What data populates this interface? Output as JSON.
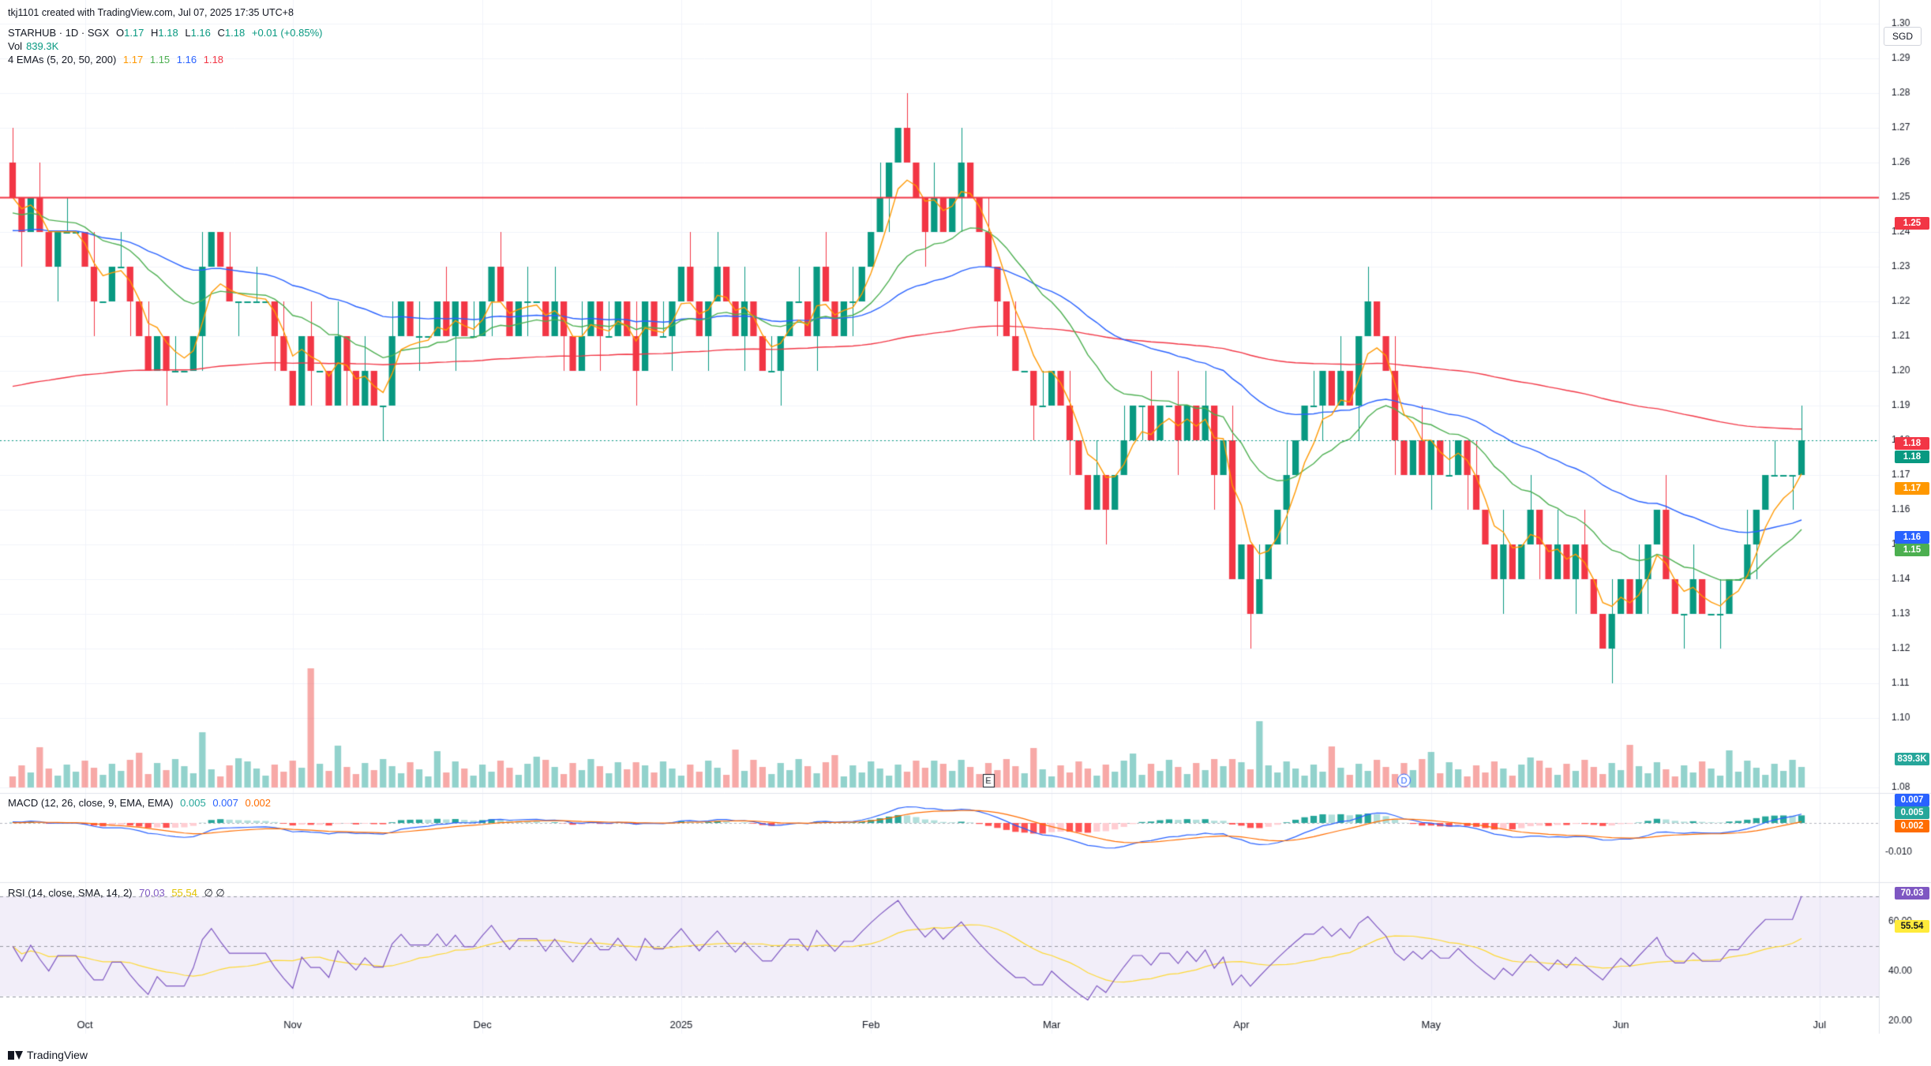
{
  "header": {
    "credit": "tkj1101 created with TradingView.com, Jul 07, 2025 17:35 UTC+8",
    "symbol": "STARHUB · 1D · SGX",
    "o_label": "O",
    "o": "1.17",
    "h_label": "H",
    "h": "1.18",
    "l_label": "L",
    "l": "1.16",
    "c_label": "C",
    "c": "1.18",
    "change": "+0.01 (+0.85%)",
    "vol_label": "Vol",
    "vol": "839.3K",
    "ema_label": "4 EMAs (5, 20, 50, 200)",
    "ema5": "1.17",
    "ema20": "1.15",
    "ema50": "1.16",
    "ema200": "1.18",
    "macd_label": "MACD (12, 26, close, 9, EMA, EMA)",
    "macd_hist": "0.005",
    "macd_line": "0.007",
    "macd_signal": "0.002",
    "rsi_label": "RSI (14, close, SMA, 14, 2)",
    "rsi_val": "70.03",
    "rsi_ma": "55.54",
    "rsi_extra": "∅ ∅"
  },
  "currency": "SGD",
  "price_axis_ticks": [
    "1.30",
    "1.29",
    "1.28",
    "1.27",
    "1.26",
    "1.25",
    "1.24",
    "1.23",
    "1.22",
    "1.21",
    "1.20",
    "1.19",
    "1.18",
    "1.17",
    "1.16",
    "1.15",
    "1.14",
    "1.13",
    "1.12",
    "1.11",
    "1.10",
    "1.08"
  ],
  "price_tags": [
    {
      "text": "1.25",
      "color": "#f23645",
      "price": 1.25
    },
    {
      "text": "1.18",
      "color": "#f23645",
      "price": 1.181
    },
    {
      "text": "1.18",
      "color": "#089981",
      "price": 1.18
    },
    {
      "text": "1.17",
      "color": "#ff9800",
      "price": 1.17
    },
    {
      "text": "1.16",
      "color": "#2962ff",
      "price": 1.16
    },
    {
      "text": "1.15",
      "color": "#4caf50",
      "price": 1.155
    }
  ],
  "vol_tag": "839.3K",
  "macd_axis": [
    "-0.010"
  ],
  "macd_tags": [
    {
      "text": "0.007",
      "color": "#2962ff"
    },
    {
      "text": "0.005",
      "color": "#26a69a"
    },
    {
      "text": "0.002",
      "color": "#ff6d00"
    }
  ],
  "rsi_axis": [
    "60.00",
    "40.00",
    "20.00"
  ],
  "rsi_tags": [
    {
      "text": "70.03",
      "color": "#7e57c2"
    },
    {
      "text": "55.54",
      "color": "#ffeb3b"
    }
  ],
  "time_axis": [
    {
      "label": "Oct",
      "idx": 8
    },
    {
      "label": "Nov",
      "idx": 31
    },
    {
      "label": "Dec",
      "idx": 52
    },
    {
      "label": "2025",
      "idx": 74
    },
    {
      "label": "Feb",
      "idx": 95
    },
    {
      "label": "Mar",
      "idx": 115
    },
    {
      "label": "Apr",
      "idx": 136
    },
    {
      "label": "May",
      "idx": 157
    },
    {
      "label": "Jun",
      "idx": 178
    },
    {
      "label": "Jul",
      "idx": 200
    }
  ],
  "markers": [
    {
      "text": "E",
      "idx": 108
    },
    {
      "text": "D",
      "idx": 154
    }
  ],
  "brand": "TradingView",
  "colors": {
    "up": "#089981",
    "down": "#f23645",
    "ema5": "#ff9800",
    "ema20": "#4caf50",
    "ema50": "#2962ff",
    "ema200": "#f23645",
    "resistance": "#f23645",
    "rsi": "#7e57c2",
    "rsi_ma": "#fdd835"
  },
  "chart_data": {
    "type": "candlestick",
    "symbol": "STARHUB",
    "resistance_level": 1.25,
    "ylim": [
      1.08,
      1.3
    ],
    "closes": [
      1.25,
      1.24,
      1.25,
      1.24,
      1.23,
      1.24,
      1.24,
      1.24,
      1.23,
      1.22,
      1.22,
      1.23,
      1.23,
      1.22,
      1.21,
      1.2,
      1.21,
      1.2,
      1.2,
      1.2,
      1.21,
      1.23,
      1.24,
      1.23,
      1.22,
      1.22,
      1.22,
      1.22,
      1.22,
      1.21,
      1.2,
      1.19,
      1.21,
      1.2,
      1.2,
      1.19,
      1.21,
      1.2,
      1.19,
      1.2,
      1.19,
      1.19,
      1.21,
      1.22,
      1.21,
      1.21,
      1.21,
      1.22,
      1.21,
      1.22,
      1.21,
      1.21,
      1.22,
      1.23,
      1.22,
      1.21,
      1.22,
      1.22,
      1.22,
      1.21,
      1.22,
      1.21,
      1.2,
      1.21,
      1.22,
      1.21,
      1.21,
      1.22,
      1.21,
      1.2,
      1.22,
      1.21,
      1.21,
      1.22,
      1.23,
      1.22,
      1.21,
      1.22,
      1.23,
      1.22,
      1.21,
      1.22,
      1.21,
      1.2,
      1.2,
      1.21,
      1.22,
      1.22,
      1.21,
      1.23,
      1.22,
      1.21,
      1.22,
      1.22,
      1.23,
      1.24,
      1.25,
      1.26,
      1.27,
      1.26,
      1.25,
      1.24,
      1.25,
      1.24,
      1.25,
      1.26,
      1.25,
      1.24,
      1.23,
      1.22,
      1.21,
      1.2,
      1.2,
      1.19,
      1.19,
      1.2,
      1.19,
      1.18,
      1.17,
      1.16,
      1.17,
      1.16,
      1.17,
      1.18,
      1.19,
      1.19,
      1.18,
      1.19,
      1.19,
      1.18,
      1.19,
      1.18,
      1.19,
      1.17,
      1.18,
      1.14,
      1.15,
      1.13,
      1.14,
      1.15,
      1.16,
      1.17,
      1.18,
      1.19,
      1.19,
      1.2,
      1.19,
      1.2,
      1.19,
      1.21,
      1.22,
      1.21,
      1.2,
      1.18,
      1.17,
      1.18,
      1.17,
      1.18,
      1.17,
      1.17,
      1.18,
      1.17,
      1.16,
      1.15,
      1.14,
      1.15,
      1.14,
      1.15,
      1.16,
      1.15,
      1.14,
      1.15,
      1.14,
      1.15,
      1.14,
      1.13,
      1.12,
      1.13,
      1.14,
      1.13,
      1.14,
      1.15,
      1.16,
      1.14,
      1.13,
      1.13,
      1.14,
      1.13,
      1.13,
      1.13,
      1.14,
      1.14,
      1.15,
      1.16,
      1.17,
      1.17,
      1.17,
      1.17,
      1.18
    ]
  }
}
